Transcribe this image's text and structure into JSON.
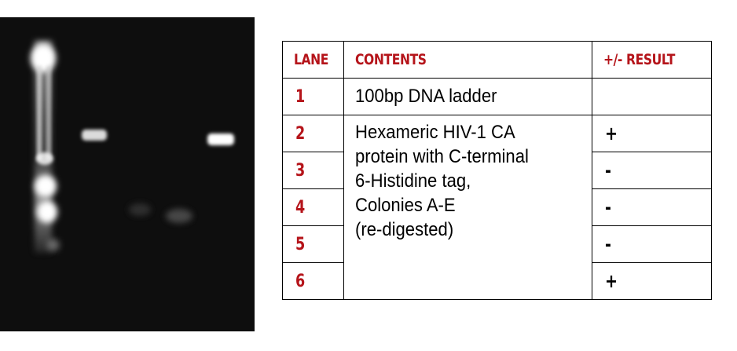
{
  "table": {
    "headers": {
      "lane": "LANE",
      "contents": "CONTENTS",
      "result": "+/- RESULT"
    },
    "rows": [
      {
        "lane": "1",
        "contents": "100bp DNA ladder",
        "result": ""
      },
      {
        "lane": "2",
        "result": "+"
      },
      {
        "lane": "3",
        "result": "-"
      },
      {
        "lane": "4",
        "result": "-"
      },
      {
        "lane": "5",
        "result": "-"
      },
      {
        "lane": "6",
        "result": "+"
      }
    ],
    "merged_contents": [
      " Hexameric HIV-1 CA",
      "protein with C-terminal",
      "6-Histidine tag,",
      " Colonies A-E",
      "(re-digested)"
    ]
  },
  "colors": {
    "header_text": "#b5141a",
    "lane_text": "#b5141a",
    "gel_background": "#0b0b0b",
    "band": "#ffffff"
  }
}
